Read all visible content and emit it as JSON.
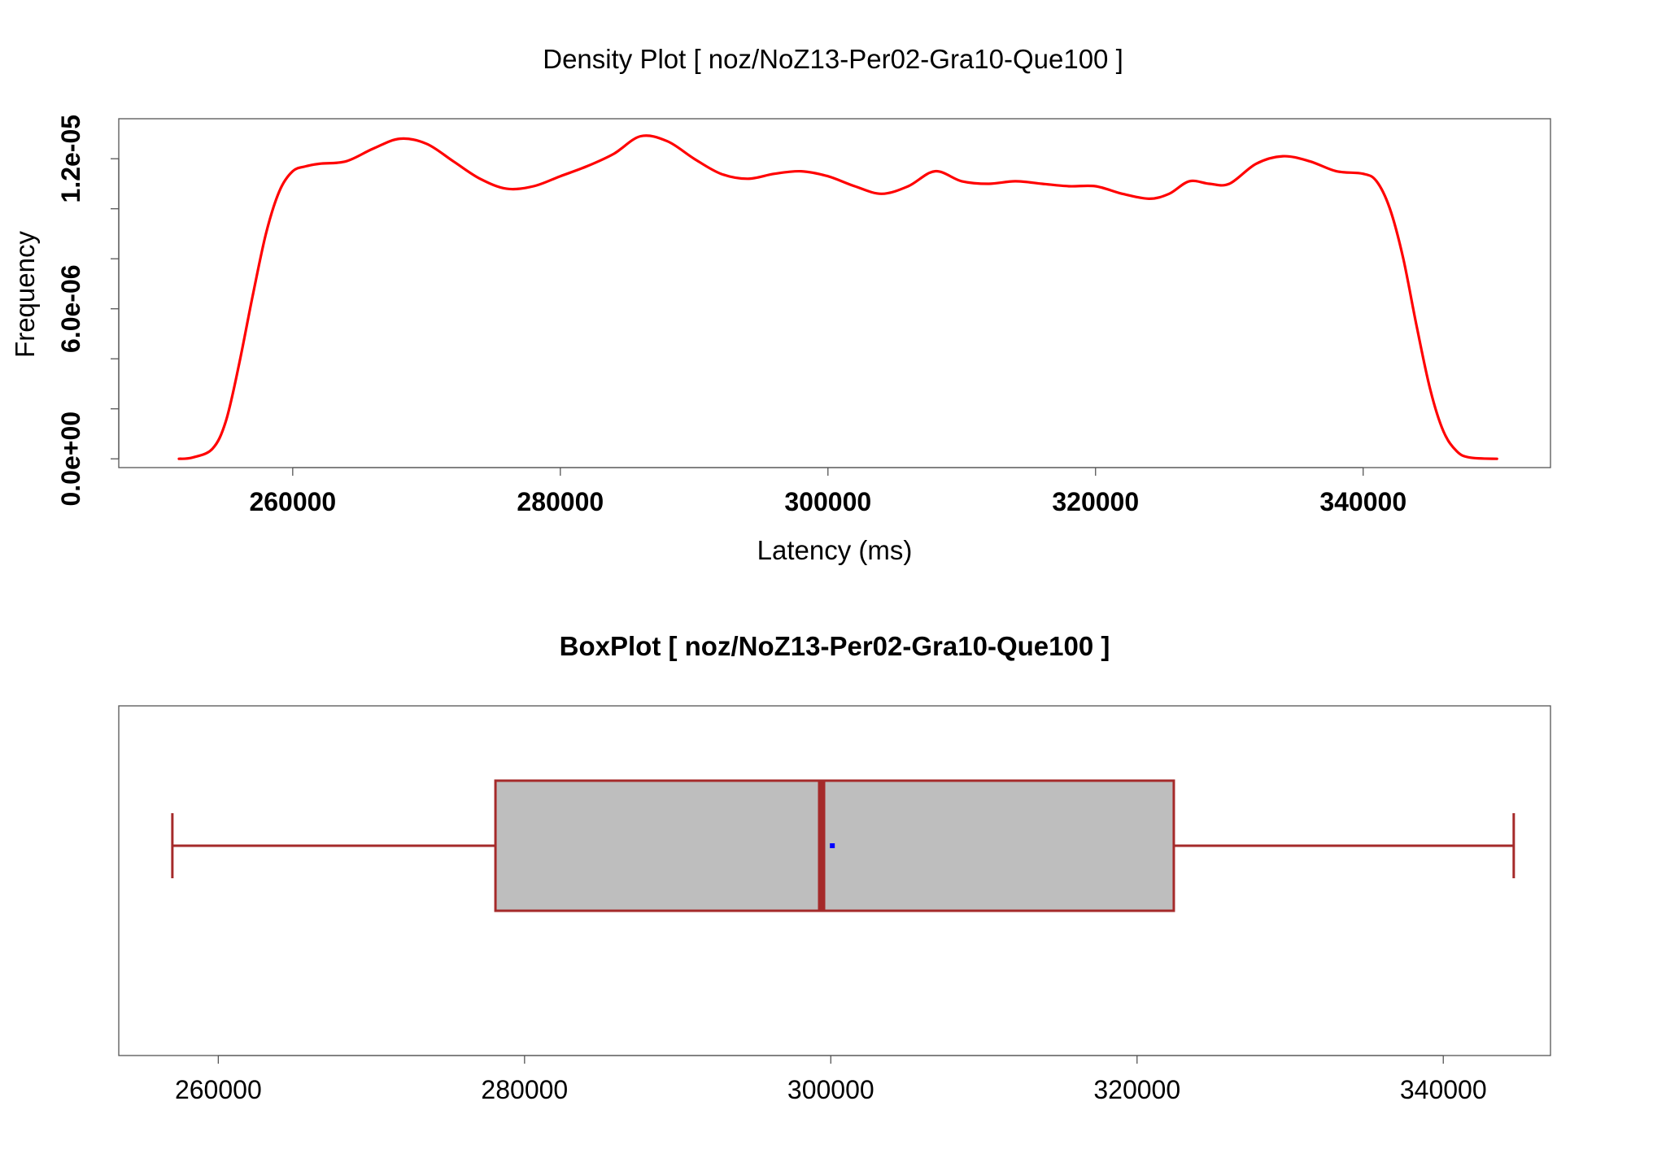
{
  "chart_data": [
    {
      "type": "line",
      "title": "Density Plot [ noz/NoZ13-Per02-Gra10-Que100 ]",
      "xlabel": "Latency (ms)",
      "ylabel": "Frequency",
      "xlim": [
        247000,
        354000
      ],
      "ylim": [
        -3.5e-07,
        1.36e-05
      ],
      "x_ticks": [
        260000,
        280000,
        300000,
        320000,
        340000
      ],
      "x_tick_labels": [
        "260000",
        "280000",
        "300000",
        "320000",
        "340000"
      ],
      "y_ticks": [
        0,
        2e-06,
        4e-06,
        6e-06,
        8e-06,
        1e-05,
        1.2e-05
      ],
      "y_tick_labels": [
        "0.0e+00",
        "",
        "",
        "6.0e-06",
        "",
        "",
        "1.2e-05"
      ],
      "grid": false,
      "series": [
        {
          "color": "#ff0000",
          "x": [
            251500,
            252500,
            254000,
            255000,
            256000,
            257000,
            258000,
            259000,
            260000,
            261000,
            262000,
            264000,
            266000,
            268000,
            270000,
            272000,
            274000,
            276000,
            278000,
            280000,
            282000,
            284000,
            286000,
            288000,
            290000,
            292000,
            294000,
            296000,
            298000,
            300000,
            302000,
            304000,
            306000,
            308000,
            310000,
            312000,
            314000,
            316000,
            318000,
            320000,
            322000,
            324000,
            325500,
            327000,
            328500,
            330000,
            332000,
            334000,
            336000,
            338000,
            340000,
            341000,
            342000,
            343000,
            344000,
            345000,
            346000,
            347000,
            348000,
            350000
          ],
          "y": [
            0.0,
            5e-08,
            4e-07,
            1.5e-06,
            3.8e-06,
            6.5e-06,
            9e-06,
            1.07e-05,
            1.15e-05,
            1.17e-05,
            1.18e-05,
            1.19e-05,
            1.24e-05,
            1.28e-05,
            1.26e-05,
            1.19e-05,
            1.12e-05,
            1.08e-05,
            1.09e-05,
            1.13e-05,
            1.17e-05,
            1.22e-05,
            1.29e-05,
            1.27e-05,
            1.2e-05,
            1.14e-05,
            1.12e-05,
            1.14e-05,
            1.15e-05,
            1.13e-05,
            1.09e-05,
            1.06e-05,
            1.09e-05,
            1.15e-05,
            1.11e-05,
            1.1e-05,
            1.11e-05,
            1.1e-05,
            1.09e-05,
            1.09e-05,
            1.06e-05,
            1.04e-05,
            1.06e-05,
            1.11e-05,
            1.1e-05,
            1.1e-05,
            1.18e-05,
            1.21e-05,
            1.19e-05,
            1.15e-05,
            1.14e-05,
            1.11e-05,
            1e-05,
            8e-06,
            5.3e-06,
            2.8e-06,
            1.1e-06,
            3e-07,
            5e-08,
            0.0
          ]
        }
      ]
    },
    {
      "type": "box",
      "title": "BoxPlot [ noz/NoZ13-Per02-Gra10-Que100 ]",
      "xlim": [
        253500,
        347000
      ],
      "x_ticks": [
        260000,
        280000,
        300000,
        320000,
        340000
      ],
      "x_tick_labels": [
        "260000",
        "280000",
        "300000",
        "320000",
        "340000"
      ],
      "grid": false,
      "box": {
        "min": 257000,
        "q1": 278100,
        "median": 299400,
        "q3": 322400,
        "max": 344600,
        "mean": 300100,
        "box_fill": "#bebebe",
        "border_color": "#a52a2a",
        "mean_color": "#0000ff"
      }
    }
  ]
}
